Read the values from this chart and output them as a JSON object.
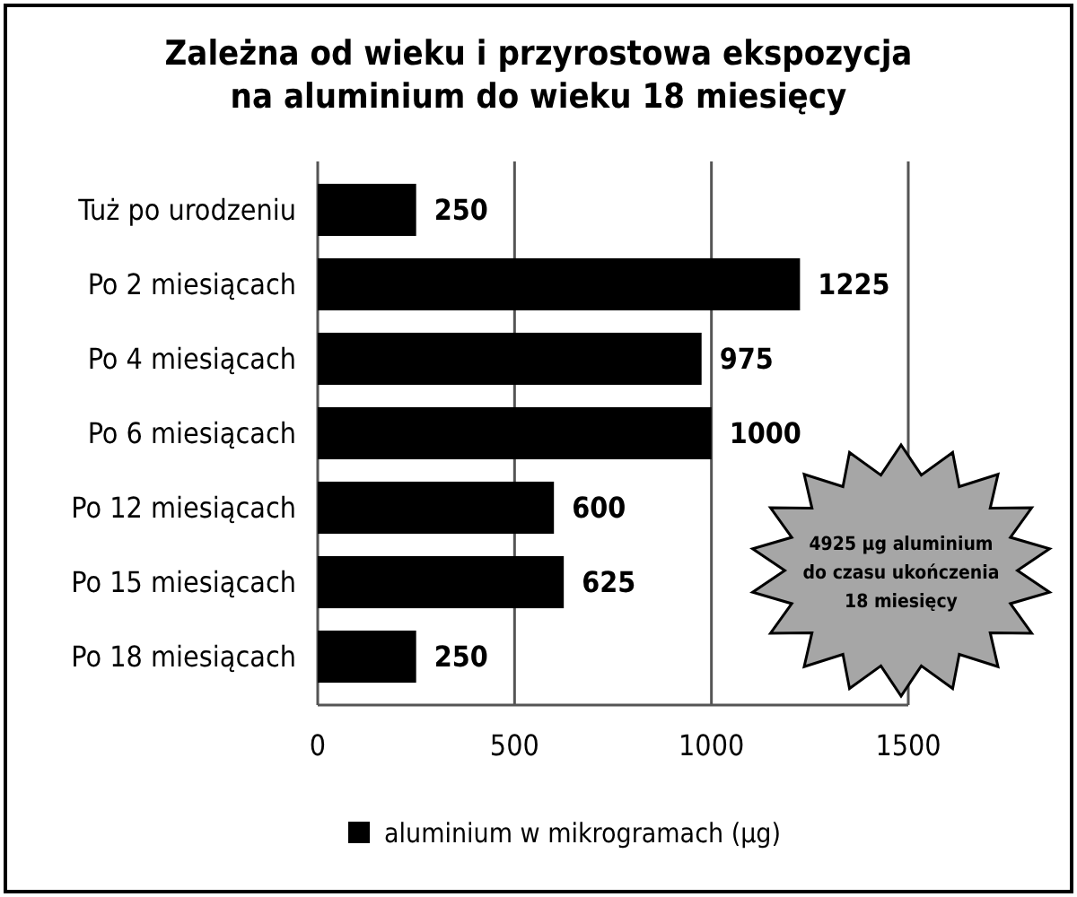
{
  "chart_data": {
    "type": "bar",
    "orientation": "horizontal",
    "title": "Zależna od wieku i przyrostowa ekspozycja\nna aluminium do wieku 18 miesięcy",
    "categories": [
      "Tuż po urodzeniu",
      "Po 2 miesiącach",
      "Po 4 miesiącach",
      "Po 6 miesiącach",
      "Po 12 miesiącach",
      "Po 15 miesiącach",
      "Po 18 miesiącach"
    ],
    "series": [
      {
        "name": "aluminium w mikrogramach (µg)",
        "color": "#000000",
        "values": [
          250,
          1225,
          975,
          1000,
          600,
          625,
          250
        ]
      }
    ],
    "xlim": [
      0,
      1500
    ],
    "xticks": [
      0,
      500,
      1000,
      1500
    ],
    "grid": "x",
    "data_labels": true,
    "legend": "bottom",
    "annotations": [
      "4925 µg aluminium\ndo czasu ukończenia\n18 miesięcy"
    ]
  }
}
